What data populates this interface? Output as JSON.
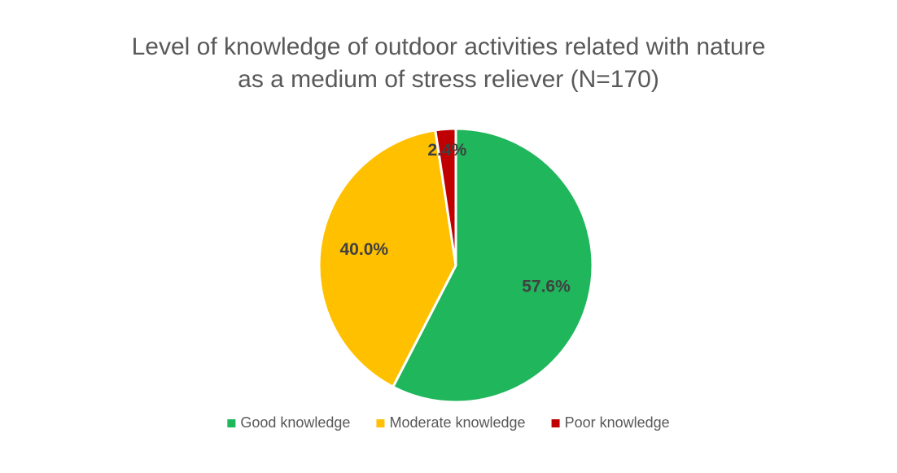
{
  "chart_data": {
    "type": "pie",
    "title": "Level of knowledge of outdoor activities related with nature as a medium of stress reliever (N=170)",
    "categories": [
      "Good knowledge",
      "Moderate knowledge",
      "Poor knowledge"
    ],
    "values": [
      57.6,
      40.0,
      2.4
    ],
    "value_labels": [
      "57.6%",
      "40.0%",
      "2.4%"
    ],
    "colors": [
      "#1fb65c",
      "#ffc000",
      "#c00000"
    ],
    "legend": "bottom"
  }
}
